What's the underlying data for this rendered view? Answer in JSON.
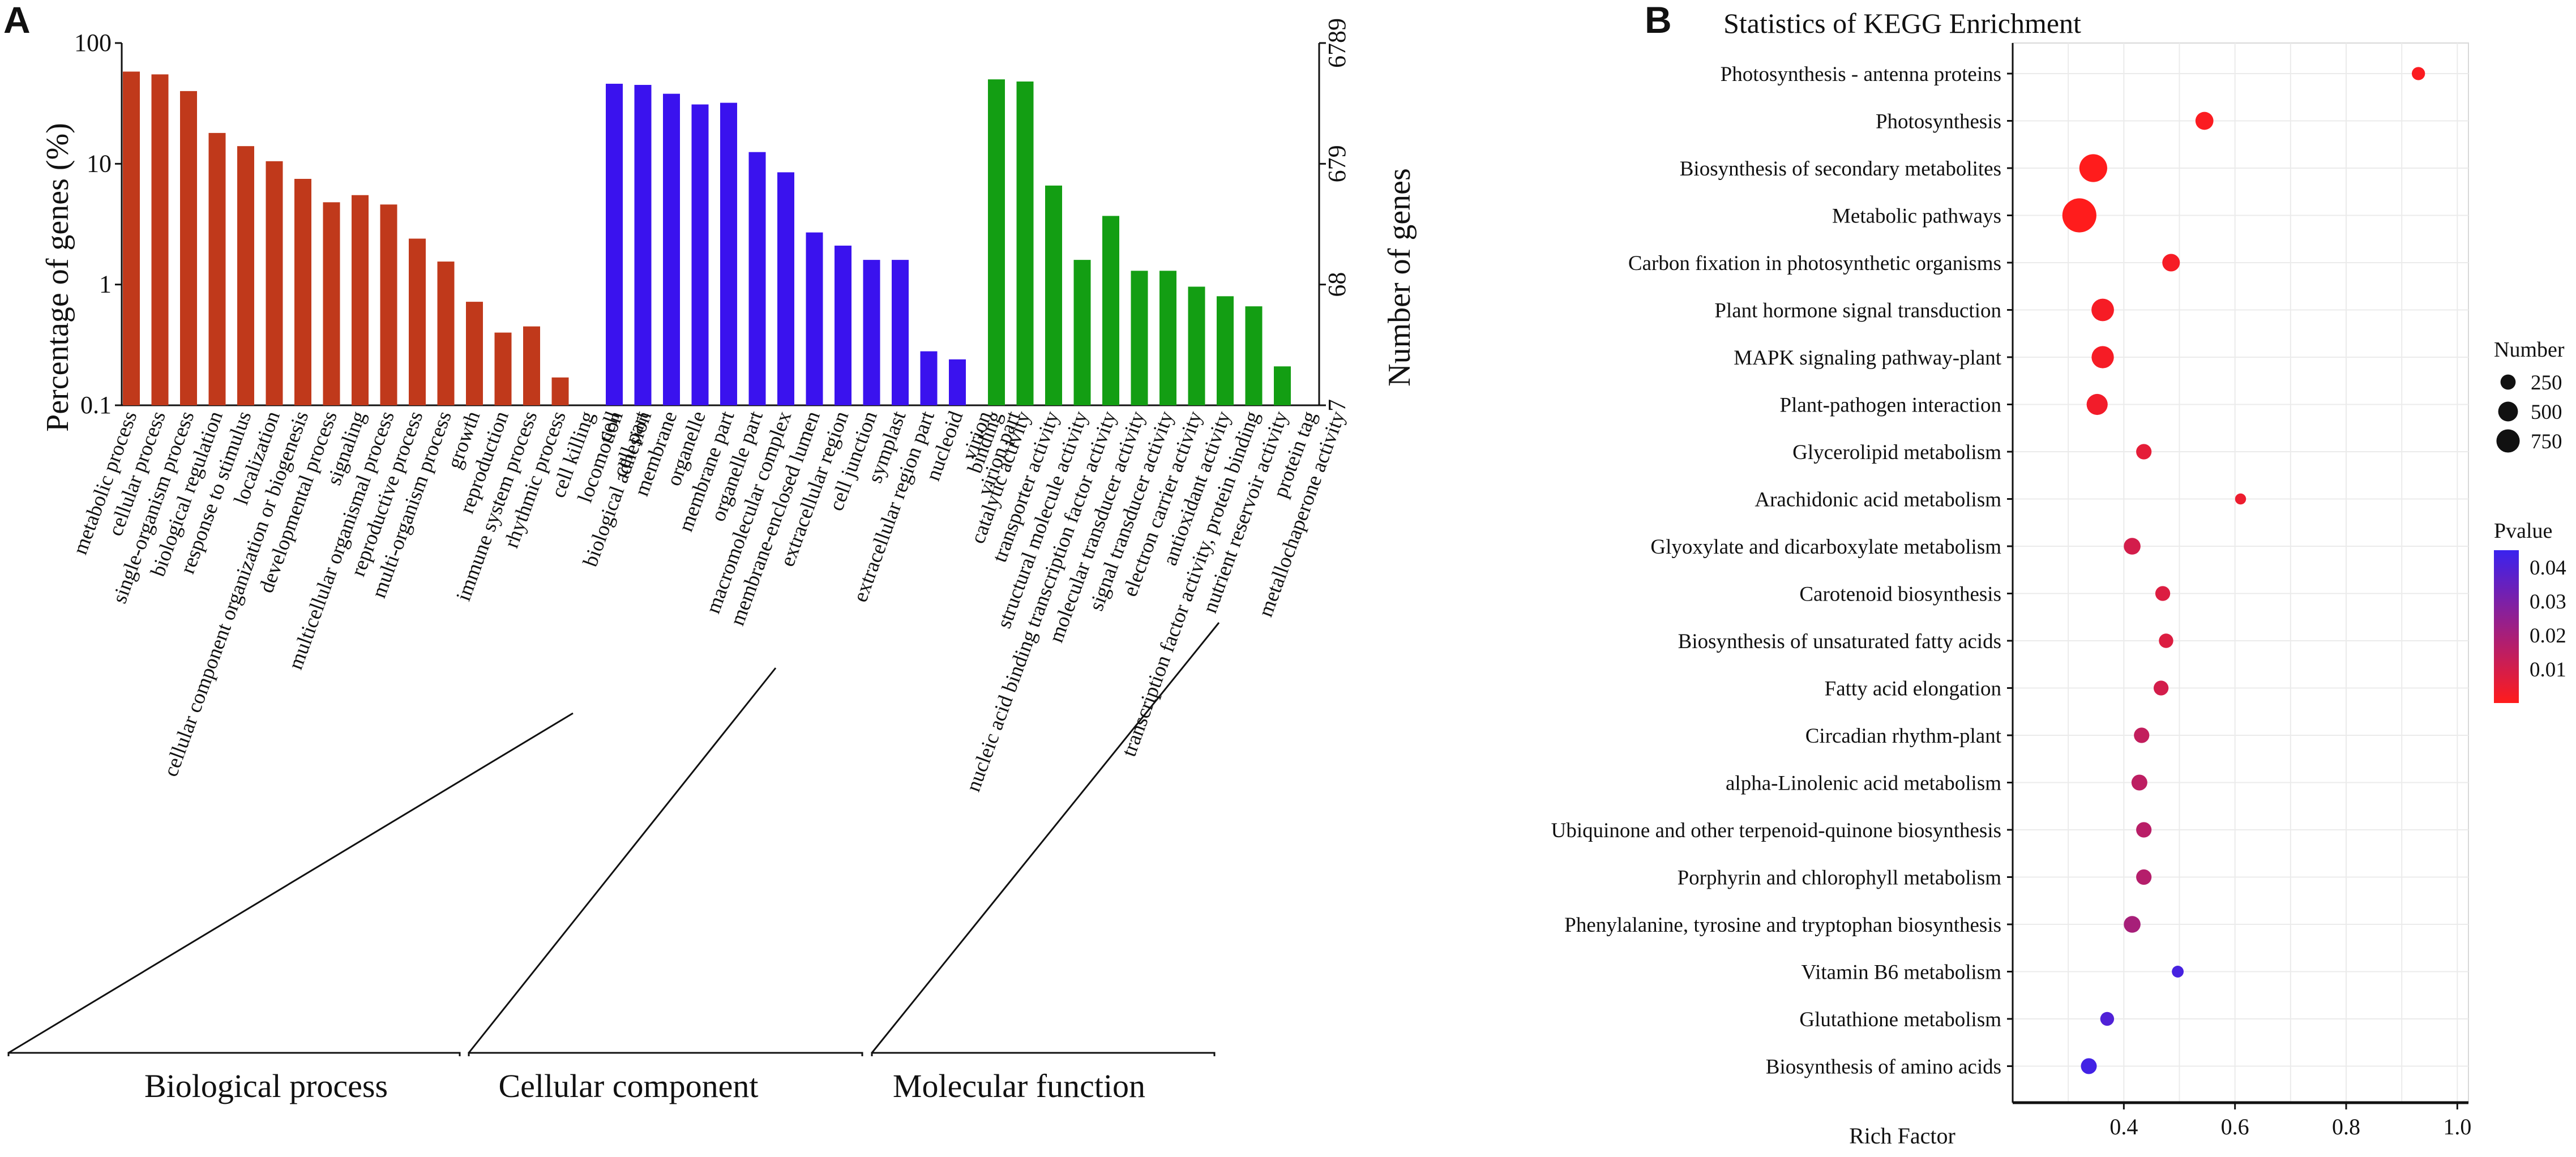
{
  "panel_a_letter": "A",
  "panel_b_letter": "B",
  "chart_data": [
    {
      "type": "bar",
      "title": "",
      "ylabel": "Percentage of genes (%)",
      "y2label": "Number of genes",
      "yscale": "log",
      "ylim": [
        0.1,
        100
      ],
      "yticks": [
        "100",
        "10",
        "1",
        "0.1"
      ],
      "y2ticks": [
        "6789",
        "679",
        "68",
        "7"
      ],
      "groups": [
        {
          "name": "Biological process",
          "color": "#c0391b",
          "categories": [
            "metabolic process",
            "cellular process",
            "single-organism process",
            "biological regulation",
            "response to stimulus",
            "localization",
            "cellular component organization or biogenesis",
            "developmental process",
            "signaling",
            "multicellular organismal process",
            "reproductive process",
            "multi-organism process",
            "growth",
            "reproduction",
            "immune system process",
            "rhythmic process",
            "cell killing",
            "locomotion",
            "biological adhesion"
          ],
          "values": [
            58,
            55,
            40,
            18,
            14,
            10.5,
            7.5,
            4.8,
            5.5,
            4.6,
            2.4,
            1.55,
            0.72,
            0.4,
            0.45,
            0.17,
            0.1,
            0.1,
            0.1
          ]
        },
        {
          "name": "Cellular component",
          "color": "#3a12ee",
          "categories": [
            "cell",
            "cell part",
            "membrane",
            "organelle",
            "membrane part",
            "organelle part",
            "macromolecular complex",
            "membrane-enclosed lumen",
            "extracellular region",
            "cell junction",
            "symplast",
            "extracellular region part",
            "nucleoid",
            "virion",
            "virion part"
          ],
          "values": [
            46,
            45,
            38,
            31,
            32,
            12.5,
            8.5,
            2.7,
            2.1,
            1.6,
            1.6,
            0.28,
            0.24,
            0.1,
            0.1
          ]
        },
        {
          "name": "Molecular function",
          "color": "#139e13",
          "categories": [
            "binding",
            "catalytic activity",
            "transporter activity",
            "structural molecule activity",
            "nucleic acid binding transcription factor activity",
            "molecular transducer activity",
            "signal transducer activity",
            "electron carrier activity",
            "antioxidant activity",
            "transcription factor activity, protein binding",
            "nutrient reservoir activity",
            "protein tag",
            "metallochaperone activity"
          ],
          "values": [
            50,
            48,
            6.6,
            1.6,
            3.7,
            1.3,
            1.3,
            0.96,
            0.8,
            0.66,
            0.21,
            0.1,
            0.1
          ]
        }
      ]
    },
    {
      "type": "scatter",
      "title": "Statistics of KEGG Enrichment",
      "xlabel": "Rich Factor",
      "xlim": [
        0.2,
        1.02
      ],
      "xticks": [
        "0.4",
        "0.6",
        "0.8",
        "1.0"
      ],
      "xtick_values": [
        0.4,
        0.6,
        0.8,
        1.0
      ],
      "pathways": [
        "Photosynthesis - antenna proteins",
        "Photosynthesis",
        "Biosynthesis of secondary metabolites",
        "Metabolic pathways",
        "Carbon fixation in photosynthetic organisms",
        "Plant hormone signal transduction",
        "MAPK signaling pathway-plant",
        "Plant-pathogen interaction",
        "Glycerolipid metabolism",
        "Arachidonic acid metabolism",
        "Glyoxylate and dicarboxylate metabolism",
        "Carotenoid biosynthesis",
        "Biosynthesis of unsaturated fatty acids",
        "Fatty acid elongation",
        "Circadian rhythm-plant",
        "alpha-Linolenic acid metabolism",
        "Ubiquinone and other terpenoid-quinone biosynthesis",
        "Porphyrin and chlorophyll metabolism",
        "Phenylalanine, tyrosine and tryptophan biosynthesis",
        "Vitamin B6 metabolism",
        "Glutathione metabolism",
        "Biosynthesis of amino acids"
      ],
      "rich_factor": [
        0.93,
        0.545,
        0.345,
        0.32,
        0.485,
        0.362,
        0.362,
        0.352,
        0.436,
        0.61,
        0.415,
        0.47,
        0.476,
        0.467,
        0.432,
        0.428,
        0.436,
        0.436,
        0.415,
        0.497,
        0.37,
        0.337
      ],
      "gene_number": [
        60,
        160,
        520,
        850,
        150,
        300,
        290,
        250,
        100,
        30,
        130,
        90,
        80,
        90,
        100,
        110,
        100,
        100,
        130,
        40,
        70,
        110
      ],
      "pvalue": [
        0.001,
        0.001,
        0.0001,
        0.0001,
        0.002,
        0.002,
        0.002,
        0.003,
        0.006,
        0.004,
        0.01,
        0.008,
        0.008,
        0.01,
        0.014,
        0.015,
        0.016,
        0.017,
        0.02,
        0.042,
        0.04,
        0.043
      ],
      "legend_number_title": "Number",
      "legend_number_labels": [
        "250",
        "500",
        "750"
      ],
      "legend_number_values": [
        250,
        500,
        750
      ],
      "legend_pvalue_title": "Pvalue",
      "legend_pvalue_labels": [
        "0.04",
        "0.03",
        "0.02",
        "0.01"
      ],
      "legend_pvalue_values": [
        0.04,
        0.03,
        0.02,
        0.01
      ],
      "color_low": "#ff1c1c",
      "color_high": "#3a22ee"
    }
  ]
}
